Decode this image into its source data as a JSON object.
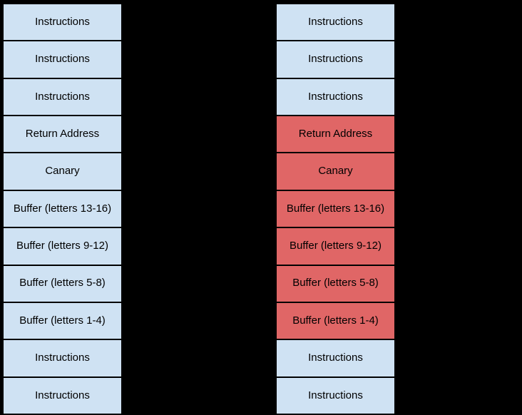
{
  "diagram": {
    "title": "stack-memory-before-and-after-overflow",
    "background_color": "#000000",
    "cell_border_color": "#000000",
    "text_color": "#000000",
    "colors": {
      "normal": "#cfe2f3",
      "overwritten": "#e06666"
    },
    "columns": [
      {
        "name": "stack-before",
        "cells": [
          {
            "label": "Instructions",
            "color": "#cfe2f3"
          },
          {
            "label": "Instructions",
            "color": "#cfe2f3"
          },
          {
            "label": "Instructions",
            "color": "#cfe2f3"
          },
          {
            "label": "Return Address",
            "color": "#cfe2f3"
          },
          {
            "label": "Canary",
            "color": "#cfe2f3"
          },
          {
            "label": "Buffer (letters 13-16)",
            "color": "#cfe2f3"
          },
          {
            "label": "Buffer (letters 9-12)",
            "color": "#cfe2f3"
          },
          {
            "label": "Buffer (letters 5-8)",
            "color": "#cfe2f3"
          },
          {
            "label": "Buffer (letters 1-4)",
            "color": "#cfe2f3"
          },
          {
            "label": "Instructions",
            "color": "#cfe2f3"
          },
          {
            "label": "Instructions",
            "color": "#cfe2f3"
          }
        ]
      },
      {
        "name": "stack-after",
        "cells": [
          {
            "label": "Instructions",
            "color": "#cfe2f3"
          },
          {
            "label": "Instructions",
            "color": "#cfe2f3"
          },
          {
            "label": "Instructions",
            "color": "#cfe2f3"
          },
          {
            "label": "Return Address",
            "color": "#e06666"
          },
          {
            "label": "Canary",
            "color": "#e06666"
          },
          {
            "label": "Buffer (letters 13-16)",
            "color": "#e06666"
          },
          {
            "label": "Buffer (letters 9-12)",
            "color": "#e06666"
          },
          {
            "label": "Buffer (letters 5-8)",
            "color": "#e06666"
          },
          {
            "label": "Buffer (letters 1-4)",
            "color": "#e06666"
          },
          {
            "label": "Instructions",
            "color": "#cfe2f3"
          },
          {
            "label": "Instructions",
            "color": "#cfe2f3"
          }
        ]
      }
    ]
  }
}
